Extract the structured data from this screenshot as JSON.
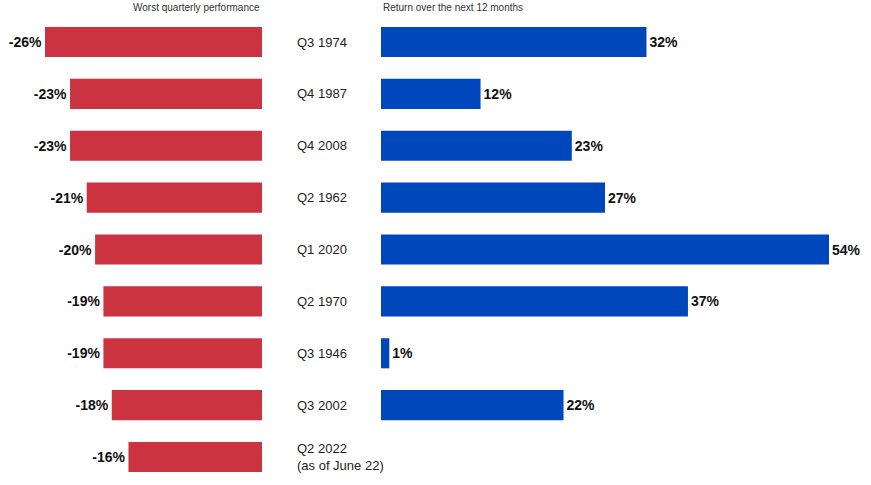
{
  "chart_data": [
    {
      "type": "bar",
      "orientation": "horizontal",
      "title": "Worst quarterly performance",
      "categories": [
        "Q3 1974",
        "Q4 1987",
        "Q4 2008",
        "Q2 1962",
        "Q1 2020",
        "Q2 1970",
        "Q3 1946",
        "Q3 2002",
        "Q2 2022\n(as of June 22)"
      ],
      "values": [
        -26,
        -23,
        -23,
        -21,
        -20,
        -19,
        -19,
        -18,
        -16
      ],
      "value_labels": [
        "-26%",
        "-23%",
        "-23%",
        "-21%",
        "-20%",
        "-19%",
        "-19%",
        "-18%",
        "-16%"
      ],
      "color": "#cc3340",
      "data_labels": true,
      "xlim": [
        -26,
        0
      ],
      "tick_labels": "y"
    },
    {
      "type": "bar",
      "orientation": "horizontal",
      "title": "Return over the next 12 months",
      "categories": [
        "Q3 1974",
        "Q4 1987",
        "Q4 2008",
        "Q2 1962",
        "Q1 2020",
        "Q2 1970",
        "Q3 1946",
        "Q3 2002",
        "Q2 2022\n(as of June 22)"
      ],
      "values": [
        32,
        12,
        23,
        27,
        54,
        37,
        1,
        22,
        null
      ],
      "value_labels": [
        "32%",
        "12%",
        "23%",
        "27%",
        "54%",
        "37%",
        "1%",
        "22%",
        null
      ],
      "color": "#0047bb",
      "data_labels": true,
      "xlim": [
        0,
        54
      ],
      "tick_labels": false
    }
  ]
}
